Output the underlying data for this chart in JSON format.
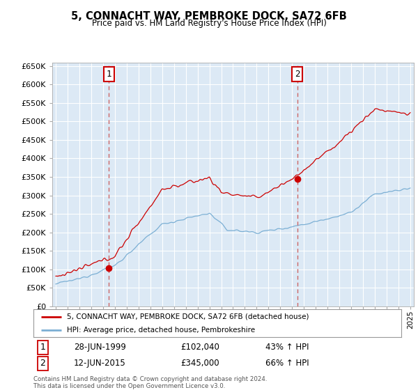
{
  "title": "5, CONNACHT WAY, PEMBROKE DOCK, SA72 6FB",
  "subtitle": "Price paid vs. HM Land Registry's House Price Index (HPI)",
  "red_line_label": "5, CONNACHT WAY, PEMBROKE DOCK, SA72 6FB (detached house)",
  "blue_line_label": "HPI: Average price, detached house, Pembrokeshire",
  "annotation1_date": "28-JUN-1999",
  "annotation1_price": "£102,040",
  "annotation1_hpi": "43% ↑ HPI",
  "annotation1_year": 1999.5,
  "annotation1_value": 102040,
  "annotation2_date": "12-JUN-2015",
  "annotation2_price": "£345,000",
  "annotation2_hpi": "66% ↑ HPI",
  "annotation2_year": 2015.45,
  "annotation2_value": 345000,
  "red_color": "#cc0000",
  "blue_color": "#7BAFD4",
  "dashed_color": "#cc6666",
  "background_color": "#ffffff",
  "plot_bg_color": "#dce9f5",
  "grid_color": "#ffffff",
  "ylim": [
    0,
    660000
  ],
  "xlim_start": 1994.7,
  "xlim_end": 2025.3,
  "yticks": [
    0,
    50000,
    100000,
    150000,
    200000,
    250000,
    300000,
    350000,
    400000,
    450000,
    500000,
    550000,
    600000,
    650000
  ],
  "footer": "Contains HM Land Registry data © Crown copyright and database right 2024.\nThis data is licensed under the Open Government Licence v3.0."
}
